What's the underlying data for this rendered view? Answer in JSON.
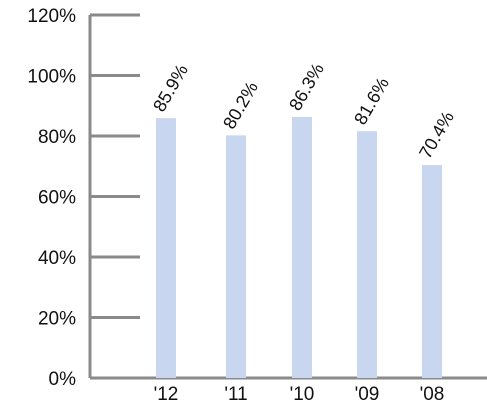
{
  "chart_data": {
    "type": "bar",
    "categories": [
      "'12",
      "'11",
      "'10",
      "'09",
      "'08"
    ],
    "values": [
      85.9,
      80.2,
      86.3,
      81.6,
      70.4
    ],
    "data_labels": [
      "85.9%",
      "80.2%",
      "86.3%",
      "81.6%",
      "70.4%"
    ],
    "y_ticks": [
      "0%",
      "20%",
      "40%",
      "60%",
      "80%",
      "100%",
      "120%"
    ],
    "y_tick_values": [
      0,
      20,
      40,
      60,
      80,
      100,
      120
    ],
    "ylim": [
      0,
      120
    ],
    "title": "",
    "xlabel": "",
    "ylabel": "",
    "grid": false,
    "legend": "none",
    "colors": {
      "bar": "#c9d6f0",
      "axis": "#8a8a8a",
      "text": "#111111"
    }
  }
}
